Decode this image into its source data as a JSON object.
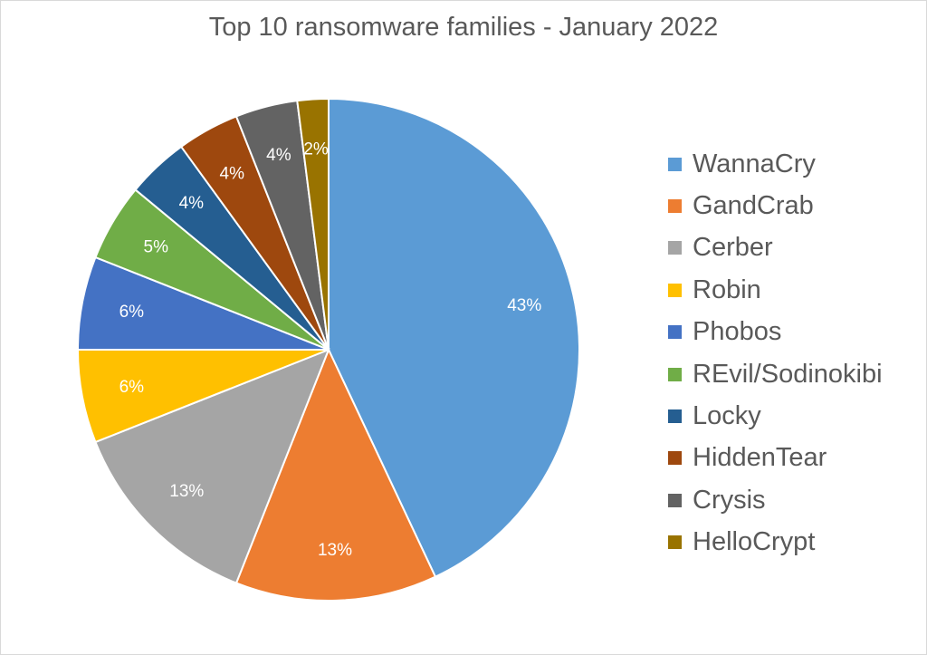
{
  "chart_data": {
    "type": "pie",
    "title": "Top 10 ransomware families - January 2022",
    "categories": [
      "WannaCry",
      "GandCrab",
      "Cerber",
      "Robin",
      "Phobos",
      "REvil/Sodinokibi",
      "Locky",
      "HiddenTear",
      "Crysis",
      "HelloCrypt"
    ],
    "values": [
      43,
      13,
      13,
      6,
      6,
      5,
      4,
      4,
      4,
      2
    ],
    "labels": [
      "43%",
      "13%",
      "13%",
      "6%",
      "6%",
      "5%",
      "4%",
      "4%",
      "4%",
      "2%"
    ],
    "colors": [
      "#5B9BD5",
      "#ED7D31",
      "#A5A5A5",
      "#FFC000",
      "#4472C4",
      "#70AD47",
      "#255E91",
      "#9E480E",
      "#636363",
      "#997300"
    ],
    "legend_position": "right"
  }
}
